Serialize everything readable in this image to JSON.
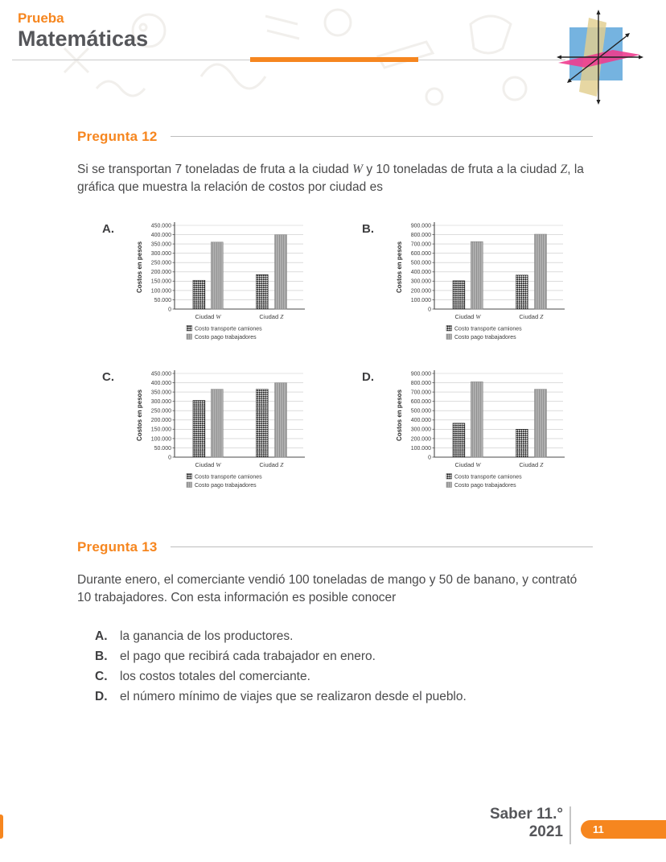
{
  "header": {
    "kicker": "Prueba",
    "title": "Matemáticas"
  },
  "logo_name": "coordinate-planes-logo",
  "q12": {
    "heading": "Pregunta 12",
    "text": {
      "p1": "Si se transportan 7 toneladas de fruta a la ciudad ",
      "v1": "W",
      "p2": " y 10 toneladas de fruta a la ciudad ",
      "v2": "Z",
      "p3": ", la gráfica que muestra la relación de costos por ciudad es"
    }
  },
  "chart_data": [
    {
      "label": "A.",
      "type": "bar",
      "ylabel": "Costos en pesos",
      "ylim": [
        0,
        450000
      ],
      "ytick_step": 50000,
      "grid": true,
      "legend_position": "bottom",
      "categories": [
        "Ciudad W",
        "Ciudad Z"
      ],
      "series": [
        {
          "name": "Costo transporte camiones",
          "pattern": "checker",
          "values": [
            155000,
            185000
          ]
        },
        {
          "name": "Costo pago trabajadores",
          "pattern": "stripes",
          "values": [
            360000,
            400000
          ]
        }
      ]
    },
    {
      "label": "B.",
      "type": "bar",
      "ylabel": "Costos en pesos",
      "ylim": [
        0,
        900000
      ],
      "ytick_step": 100000,
      "grid": true,
      "legend_position": "bottom",
      "categories": [
        "Ciudad W",
        "Ciudad Z"
      ],
      "series": [
        {
          "name": "Costo transporte camiones",
          "pattern": "checker",
          "values": [
            305000,
            365000
          ]
        },
        {
          "name": "Costo pago trabajadores",
          "pattern": "stripes",
          "values": [
            725000,
            805000
          ]
        }
      ]
    },
    {
      "label": "C.",
      "type": "bar",
      "ylabel": "Costos en pesos",
      "ylim": [
        0,
        450000
      ],
      "ytick_step": 50000,
      "grid": true,
      "legend_position": "bottom",
      "categories": [
        "Ciudad W",
        "Ciudad Z"
      ],
      "series": [
        {
          "name": "Costo transporte camiones",
          "pattern": "checker",
          "values": [
            305000,
            365000
          ]
        },
        {
          "name": "Costo pago trabajadores",
          "pattern": "stripes",
          "values": [
            365000,
            400000
          ]
        }
      ]
    },
    {
      "label": "D.",
      "type": "bar",
      "ylabel": "Costos en pesos",
      "ylim": [
        0,
        900000
      ],
      "ytick_step": 100000,
      "grid": true,
      "legend_position": "bottom",
      "categories": [
        "Ciudad W",
        "Ciudad Z"
      ],
      "series": [
        {
          "name": "Costo transporte camiones",
          "pattern": "checker",
          "values": [
            365000,
            300000
          ]
        },
        {
          "name": "Costo pago trabajadores",
          "pattern": "stripes",
          "values": [
            810000,
            730000
          ]
        }
      ]
    }
  ],
  "q13": {
    "heading": "Pregunta 13",
    "text": "Durante enero, el comerciante vendió 100 toneladas de mango y 50 de banano, y contrató 10 trabajadores. Con esta información es posible conocer",
    "options": [
      {
        "letter": "A.",
        "text": "la ganancia de los productores."
      },
      {
        "letter": "B.",
        "text": "el pago que recibirá cada trabajador en enero."
      },
      {
        "letter": "C.",
        "text": "los costos totales del comerciante."
      },
      {
        "letter": "D.",
        "text": "el número mínimo de viajes que se realizaron desde el pueblo."
      }
    ]
  },
  "footer": {
    "exam": "Saber 11.°",
    "year": "2021",
    "page_number": "11"
  },
  "colors": {
    "accent": "#F6861F",
    "heading_gray": "#55565A",
    "body_gray": "#4A4A4B",
    "bar_gray": "#B6B6B6",
    "bar_checker": "#161616"
  }
}
